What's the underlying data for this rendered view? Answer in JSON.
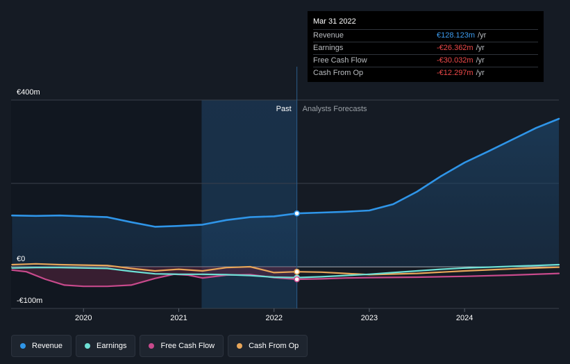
{
  "tooltip": {
    "date": "Mar 31 2022",
    "rows": [
      {
        "label": "Revenue",
        "value": "€128.123m",
        "unit": "/yr",
        "sign": "pos"
      },
      {
        "label": "Earnings",
        "value": "-€26.362m",
        "unit": "/yr",
        "sign": "neg"
      },
      {
        "label": "Free Cash Flow",
        "value": "-€30.032m",
        "unit": "/yr",
        "sign": "neg"
      },
      {
        "label": "Cash From Op",
        "value": "-€12.297m",
        "unit": "/yr",
        "sign": "neg"
      }
    ]
  },
  "chart_data": {
    "type": "line",
    "title": "",
    "xlabel": "",
    "ylabel": "",
    "y_ticks": [
      {
        "value": 400,
        "label": "€400m"
      },
      {
        "value": 0,
        "label": "€0"
      },
      {
        "value": -100,
        "label": "-€100m"
      }
    ],
    "x_ticks": [
      {
        "value": 2020,
        "label": "2020"
      },
      {
        "value": 2021,
        "label": "2021"
      },
      {
        "value": 2022,
        "label": "2022"
      },
      {
        "value": 2023,
        "label": "2023"
      },
      {
        "value": 2024,
        "label": "2024"
      }
    ],
    "ylim": [
      -100,
      400
    ],
    "xlim": [
      2019.24,
      2024.99
    ],
    "grid": true,
    "divider": {
      "x": 2022.24,
      "past_label": "Past",
      "forecast_label": "Analysts Forecasts"
    },
    "highlight_start": 2021.24,
    "series": [
      {
        "name": "Revenue",
        "color": "#2f95e8",
        "fill": true,
        "points": [
          [
            2019.25,
            123
          ],
          [
            2019.5,
            122
          ],
          [
            2019.75,
            123
          ],
          [
            2020.0,
            121
          ],
          [
            2020.25,
            119
          ],
          [
            2020.5,
            107
          ],
          [
            2020.75,
            96
          ],
          [
            2021.0,
            98
          ],
          [
            2021.25,
            101
          ],
          [
            2021.5,
            112
          ],
          [
            2021.75,
            119
          ],
          [
            2022.0,
            121
          ],
          [
            2022.24,
            128
          ],
          [
            2022.5,
            130
          ],
          [
            2022.75,
            132
          ],
          [
            2023.0,
            135
          ],
          [
            2023.25,
            150
          ],
          [
            2023.5,
            180
          ],
          [
            2023.75,
            217
          ],
          [
            2024.0,
            250
          ],
          [
            2024.25,
            277
          ],
          [
            2024.5,
            305
          ],
          [
            2024.75,
            333
          ],
          [
            2024.99,
            355
          ]
        ]
      },
      {
        "name": "Earnings",
        "color": "#6ee0d5",
        "fill": false,
        "points": [
          [
            2019.25,
            -3
          ],
          [
            2019.5,
            -2
          ],
          [
            2019.75,
            -2
          ],
          [
            2020.0,
            -3
          ],
          [
            2020.25,
            -4
          ],
          [
            2020.5,
            -11
          ],
          [
            2020.75,
            -17
          ],
          [
            2021.0,
            -18
          ],
          [
            2021.25,
            -18
          ],
          [
            2021.5,
            -19
          ],
          [
            2021.75,
            -21
          ],
          [
            2022.0,
            -25
          ],
          [
            2022.24,
            -26
          ],
          [
            2022.5,
            -24
          ],
          [
            2022.75,
            -21
          ],
          [
            2023.0,
            -18
          ],
          [
            2023.25,
            -14
          ],
          [
            2023.5,
            -10
          ],
          [
            2023.75,
            -6
          ],
          [
            2024.0,
            -3
          ],
          [
            2024.25,
            -1
          ],
          [
            2024.5,
            1
          ],
          [
            2024.75,
            3
          ],
          [
            2024.99,
            5
          ]
        ]
      },
      {
        "name": "Free Cash Flow",
        "color": "#c84a8c",
        "fill": false,
        "points": [
          [
            2019.25,
            -8
          ],
          [
            2019.4,
            -12
          ],
          [
            2019.6,
            -30
          ],
          [
            2019.8,
            -44
          ],
          [
            2020.0,
            -47
          ],
          [
            2020.25,
            -47
          ],
          [
            2020.5,
            -44
          ],
          [
            2020.75,
            -28
          ],
          [
            2020.95,
            -18
          ],
          [
            2021.1,
            -20
          ],
          [
            2021.25,
            -27
          ],
          [
            2021.5,
            -20
          ],
          [
            2021.75,
            -19
          ],
          [
            2022.0,
            -26
          ],
          [
            2022.24,
            -30
          ],
          [
            2022.5,
            -29
          ],
          [
            2022.75,
            -27
          ],
          [
            2023.0,
            -26
          ],
          [
            2023.5,
            -25
          ],
          [
            2024.0,
            -23
          ],
          [
            2024.5,
            -20
          ],
          [
            2024.99,
            -16
          ]
        ]
      },
      {
        "name": "Cash From Op",
        "color": "#e8a65a",
        "fill": false,
        "points": [
          [
            2019.25,
            5
          ],
          [
            2019.5,
            7
          ],
          [
            2019.75,
            5
          ],
          [
            2020.0,
            4
          ],
          [
            2020.25,
            3
          ],
          [
            2020.5,
            -4
          ],
          [
            2020.75,
            -10
          ],
          [
            2021.0,
            -6
          ],
          [
            2021.25,
            -10
          ],
          [
            2021.5,
            -2
          ],
          [
            2021.75,
            0
          ],
          [
            2022.0,
            -14
          ],
          [
            2022.24,
            -12
          ],
          [
            2022.5,
            -13
          ],
          [
            2022.75,
            -16
          ],
          [
            2023.0,
            -19
          ],
          [
            2023.5,
            -16
          ],
          [
            2024.0,
            -10
          ],
          [
            2024.5,
            -5
          ],
          [
            2024.99,
            -1
          ]
        ]
      }
    ]
  },
  "legend": [
    {
      "label": "Revenue",
      "color": "#2f95e8"
    },
    {
      "label": "Earnings",
      "color": "#6ee0d5"
    },
    {
      "label": "Free Cash Flow",
      "color": "#c84a8c"
    },
    {
      "label": "Cash From Op",
      "color": "#e8a65a"
    }
  ]
}
